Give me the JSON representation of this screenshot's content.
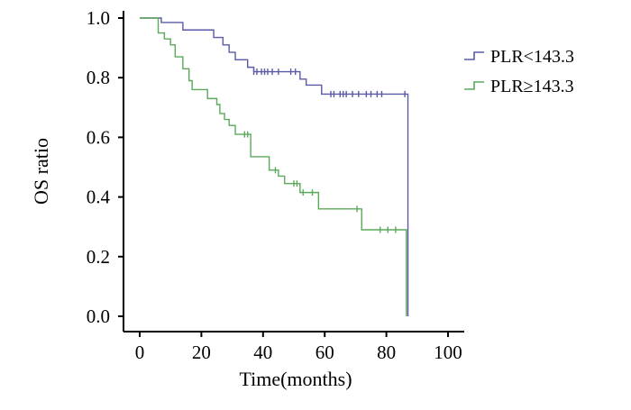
{
  "chart_data": {
    "type": "line",
    "title": "",
    "xlabel": "Time(months)",
    "ylabel": "OS ratio",
    "xlim": [
      0,
      100
    ],
    "ylim": [
      0.0,
      1.0
    ],
    "x_ticks": [
      0,
      20,
      40,
      60,
      80,
      100
    ],
    "y_ticks": [
      0.0,
      0.2,
      0.4,
      0.6,
      0.8,
      1.0
    ],
    "x_tick_labels": [
      "0",
      "20",
      "40",
      "60",
      "80",
      "100"
    ],
    "y_tick_labels": [
      "0.0",
      "0.2",
      "0.4",
      "0.6",
      "0.8",
      "1.0"
    ],
    "grid": false,
    "legend_position": "top-right",
    "series": [
      {
        "name": "PLR<143.3",
        "color": "#5a5aa8",
        "steps": [
          [
            0,
            1.0
          ],
          [
            7,
            0.985
          ],
          [
            14,
            0.96
          ],
          [
            24,
            0.935
          ],
          [
            27,
            0.91
          ],
          [
            29,
            0.885
          ],
          [
            31,
            0.86
          ],
          [
            35,
            0.835
          ],
          [
            37,
            0.82
          ],
          [
            52,
            0.795
          ],
          [
            54,
            0.775
          ],
          [
            59,
            0.745
          ],
          [
            87,
            0.0
          ]
        ],
        "end_x": 87,
        "censor": [
          [
            37,
            0.82
          ],
          [
            38,
            0.82
          ],
          [
            39.5,
            0.82
          ],
          [
            40.5,
            0.82
          ],
          [
            41.5,
            0.82
          ],
          [
            43,
            0.82
          ],
          [
            45,
            0.82
          ],
          [
            49,
            0.82
          ],
          [
            50.5,
            0.82
          ],
          [
            62,
            0.745
          ],
          [
            63,
            0.745
          ],
          [
            65,
            0.745
          ],
          [
            66,
            0.745
          ],
          [
            67,
            0.745
          ],
          [
            69,
            0.745
          ],
          [
            71,
            0.745
          ],
          [
            73.5,
            0.745
          ],
          [
            75,
            0.745
          ],
          [
            77,
            0.745
          ],
          [
            78.5,
            0.745
          ],
          [
            86,
            0.745
          ]
        ]
      },
      {
        "name": "PLR≥143.3",
        "color": "#5aaa5a",
        "steps": [
          [
            0,
            1.0
          ],
          [
            6,
            0.95
          ],
          [
            8,
            0.93
          ],
          [
            10,
            0.91
          ],
          [
            11.5,
            0.87
          ],
          [
            14,
            0.83
          ],
          [
            16,
            0.79
          ],
          [
            17,
            0.76
          ],
          [
            22,
            0.73
          ],
          [
            25,
            0.71
          ],
          [
            26,
            0.68
          ],
          [
            27.5,
            0.66
          ],
          [
            29,
            0.64
          ],
          [
            31,
            0.61
          ],
          [
            36,
            0.535
          ],
          [
            42,
            0.49
          ],
          [
            45,
            0.47
          ],
          [
            47,
            0.445
          ],
          [
            52,
            0.415
          ],
          [
            58,
            0.36
          ],
          [
            72,
            0.29
          ],
          [
            86.5,
            0.0
          ]
        ],
        "end_x": 86.5,
        "censor": [
          [
            34,
            0.61
          ],
          [
            35,
            0.61
          ],
          [
            44,
            0.49
          ],
          [
            50,
            0.445
          ],
          [
            51,
            0.445
          ],
          [
            53,
            0.415
          ],
          [
            56,
            0.415
          ],
          [
            70.5,
            0.36
          ],
          [
            78,
            0.29
          ],
          [
            80.5,
            0.29
          ],
          [
            83,
            0.29
          ]
        ]
      }
    ]
  }
}
